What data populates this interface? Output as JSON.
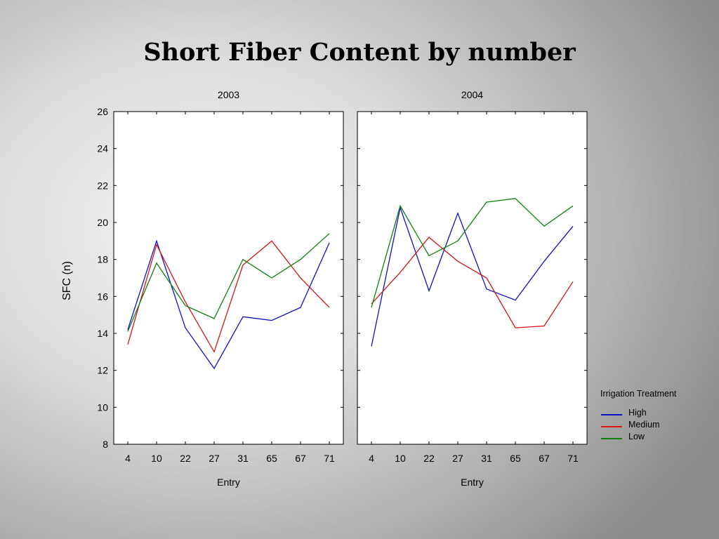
{
  "slide": {
    "title": "Short Fiber Content by number"
  },
  "colors": {
    "High": "#1010c8",
    "Medium": "#d81414",
    "Low": "#108010"
  },
  "chart_data": [
    {
      "type": "line",
      "title": "2003",
      "xlabel": "Entry",
      "ylabel": "SFC (n)",
      "ylim": [
        8,
        26
      ],
      "yticks": [
        8,
        10,
        12,
        14,
        16,
        18,
        20,
        22,
        24,
        26
      ],
      "categories": [
        "4",
        "10",
        "22",
        "27",
        "31",
        "65",
        "67",
        "71"
      ],
      "grid": false,
      "series": [
        {
          "name": "High",
          "values": [
            14.2,
            19.0,
            14.3,
            12.1,
            14.9,
            14.7,
            15.4,
            18.9
          ]
        },
        {
          "name": "Medium",
          "values": [
            13.4,
            18.8,
            15.7,
            13.0,
            17.7,
            19.0,
            17.0,
            15.4
          ]
        },
        {
          "name": "Low",
          "values": [
            14.1,
            17.8,
            15.5,
            14.8,
            18.0,
            17.0,
            18.0,
            19.4
          ]
        }
      ]
    },
    {
      "type": "line",
      "title": "2004",
      "xlabel": "Entry",
      "ylabel": "",
      "ylim": [
        8,
        26
      ],
      "categories": [
        "4",
        "10",
        "22",
        "27",
        "31",
        "65",
        "67",
        "71"
      ],
      "grid": false,
      "series": [
        {
          "name": "High",
          "values": [
            13.3,
            20.8,
            16.3,
            20.5,
            16.4,
            15.8,
            17.9,
            19.8
          ]
        },
        {
          "name": "Medium",
          "values": [
            15.6,
            17.3,
            19.2,
            17.9,
            17.0,
            14.3,
            14.4,
            16.8
          ]
        },
        {
          "name": "Low",
          "values": [
            15.4,
            20.9,
            18.2,
            19.0,
            21.1,
            21.3,
            19.8,
            20.9
          ]
        }
      ]
    }
  ],
  "legend": {
    "title": "Irrigation Treatment",
    "position": "right",
    "items": [
      "High",
      "Medium",
      "Low"
    ]
  }
}
